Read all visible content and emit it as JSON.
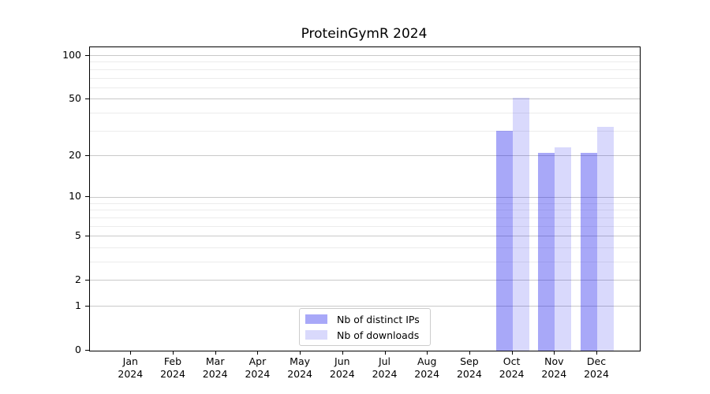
{
  "title": "ProteinGymR 2024",
  "chart_data": {
    "type": "bar",
    "title": "ProteinGymR 2024",
    "categories": [
      "Jan 2024",
      "Feb 2024",
      "Mar 2024",
      "Apr 2024",
      "May 2024",
      "Jun 2024",
      "Jul 2024",
      "Aug 2024",
      "Sep 2024",
      "Oct 2024",
      "Nov 2024",
      "Dec 2024"
    ],
    "series": [
      {
        "name": "Nb of distinct IPs",
        "color": "rgba(15,15,235,0.36)",
        "values": [
          0,
          0,
          0,
          0,
          0,
          0,
          0,
          0,
          0,
          30,
          21,
          21
        ]
      },
      {
        "name": "Nb of downloads",
        "color": "rgba(15,15,235,0.155)",
        "values": [
          0,
          0,
          0,
          0,
          0,
          0,
          0,
          0,
          0,
          51,
          23,
          32
        ]
      }
    ],
    "xlabel": "",
    "ylabel": "",
    "yscale": "log1p",
    "ylim": [
      0,
      114
    ],
    "yticks_major": [
      0,
      1,
      2,
      5,
      10,
      20,
      50,
      100
    ],
    "yticks_minor": [
      3,
      4,
      6,
      7,
      8,
      9,
      30,
      40,
      60,
      70,
      80,
      90
    ],
    "grid": "both",
    "legend_position": "lower center"
  },
  "colors": {
    "background": "#ffffff",
    "axis": "#000000",
    "grid_major": "#c9c9c9",
    "grid_minor": "#ececec",
    "legend_border": "#cccccc",
    "legend_background": "rgba(255,255,255,0.9)",
    "text": "#000000"
  }
}
